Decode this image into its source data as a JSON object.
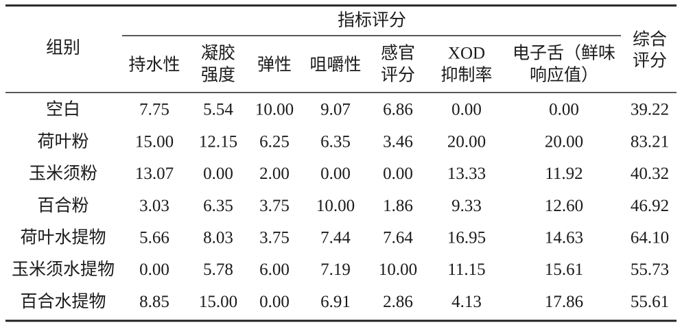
{
  "table": {
    "group_header": "组别",
    "span_header": "指标评分",
    "total_header": [
      "综合",
      "评分"
    ],
    "columns": [
      [
        "持水性"
      ],
      [
        "凝胶",
        "强度"
      ],
      [
        "弹性"
      ],
      [
        "咀嚼性"
      ],
      [
        "感官",
        "评分"
      ],
      [
        "XOD",
        "抑制率"
      ],
      [
        "电子舌（鲜味",
        "响应值）"
      ]
    ],
    "rows": [
      [
        "空白",
        "7.75",
        "5.54",
        "10.00",
        "9.07",
        "6.86",
        "0.00",
        "0.00",
        "39.22"
      ],
      [
        "荷叶粉",
        "15.00",
        "12.15",
        "6.25",
        "6.35",
        "3.46",
        "20.00",
        "20.00",
        "83.21"
      ],
      [
        "玉米须粉",
        "13.07",
        "0.00",
        "2.00",
        "0.00",
        "0.00",
        "13.33",
        "11.92",
        "40.32"
      ],
      [
        "百合粉",
        "3.03",
        "6.35",
        "3.75",
        "10.00",
        "1.86",
        "9.33",
        "12.60",
        "46.92"
      ],
      [
        "荷叶水提物",
        "5.66",
        "8.03",
        "3.75",
        "7.44",
        "7.64",
        "16.95",
        "14.63",
        "64.10"
      ],
      [
        "玉米须水提物",
        "0.00",
        "5.78",
        "6.00",
        "7.19",
        "10.00",
        "11.15",
        "15.61",
        "55.73"
      ],
      [
        "百合水提物",
        "8.85",
        "15.00",
        "0.00",
        "6.91",
        "2.86",
        "4.13",
        "17.86",
        "55.61"
      ]
    ]
  }
}
